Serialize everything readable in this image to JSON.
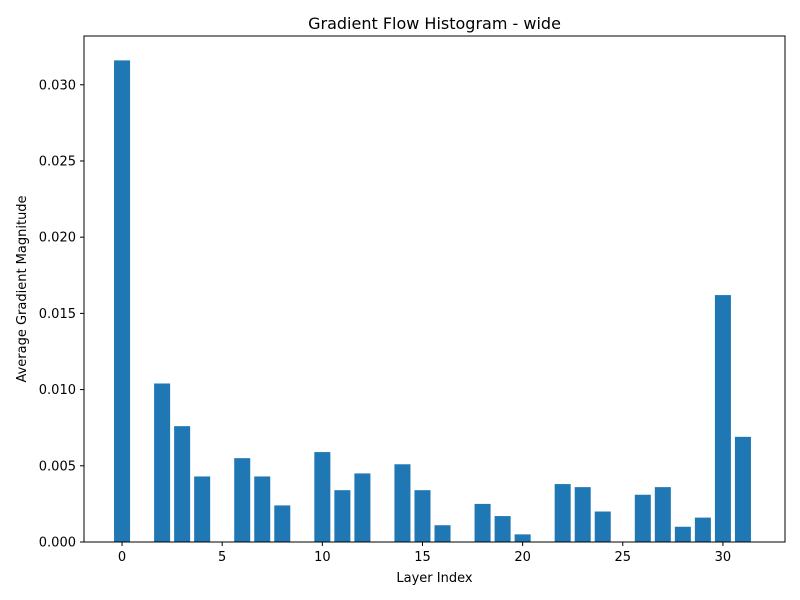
{
  "chart_data": {
    "type": "bar",
    "title": "Gradient Flow Histogram - wide",
    "xlabel": "Layer Index",
    "ylabel": "Average Gradient Magnitude",
    "x": [
      0,
      1,
      2,
      3,
      4,
      5,
      6,
      7,
      8,
      9,
      10,
      11,
      12,
      13,
      14,
      15,
      16,
      17,
      18,
      19,
      20,
      21,
      22,
      23,
      24,
      25,
      26,
      27,
      28,
      29,
      30,
      31
    ],
    "values": [
      0.0316,
      0,
      0.0104,
      0.0076,
      0.0043,
      0,
      0.0055,
      0.0043,
      0.0024,
      0,
      0.0059,
      0.0034,
      0.0045,
      0,
      0.0051,
      0.0034,
      0.0011,
      0,
      0.0025,
      0.0017,
      0.0005,
      0,
      0.0038,
      0.0036,
      0.002,
      0,
      0.0031,
      0.0036,
      0.001,
      0.0016,
      0.0162,
      0.0069
    ],
    "xlim": [
      -1.9,
      33.1
    ],
    "ylim": [
      0,
      0.0332
    ],
    "xticks": [
      0,
      5,
      10,
      15,
      20,
      25,
      30
    ],
    "xtick_labels": [
      "0",
      "5",
      "10",
      "15",
      "20",
      "25",
      "30"
    ],
    "yticks": [
      0,
      0.005,
      0.01,
      0.015,
      0.02,
      0.025,
      0.03
    ],
    "ytick_labels": [
      "0.000",
      "0.005",
      "0.010",
      "0.015",
      "0.020",
      "0.025",
      "0.030"
    ],
    "bar_color": "#1f77b4",
    "grid": false,
    "legend": "none"
  }
}
